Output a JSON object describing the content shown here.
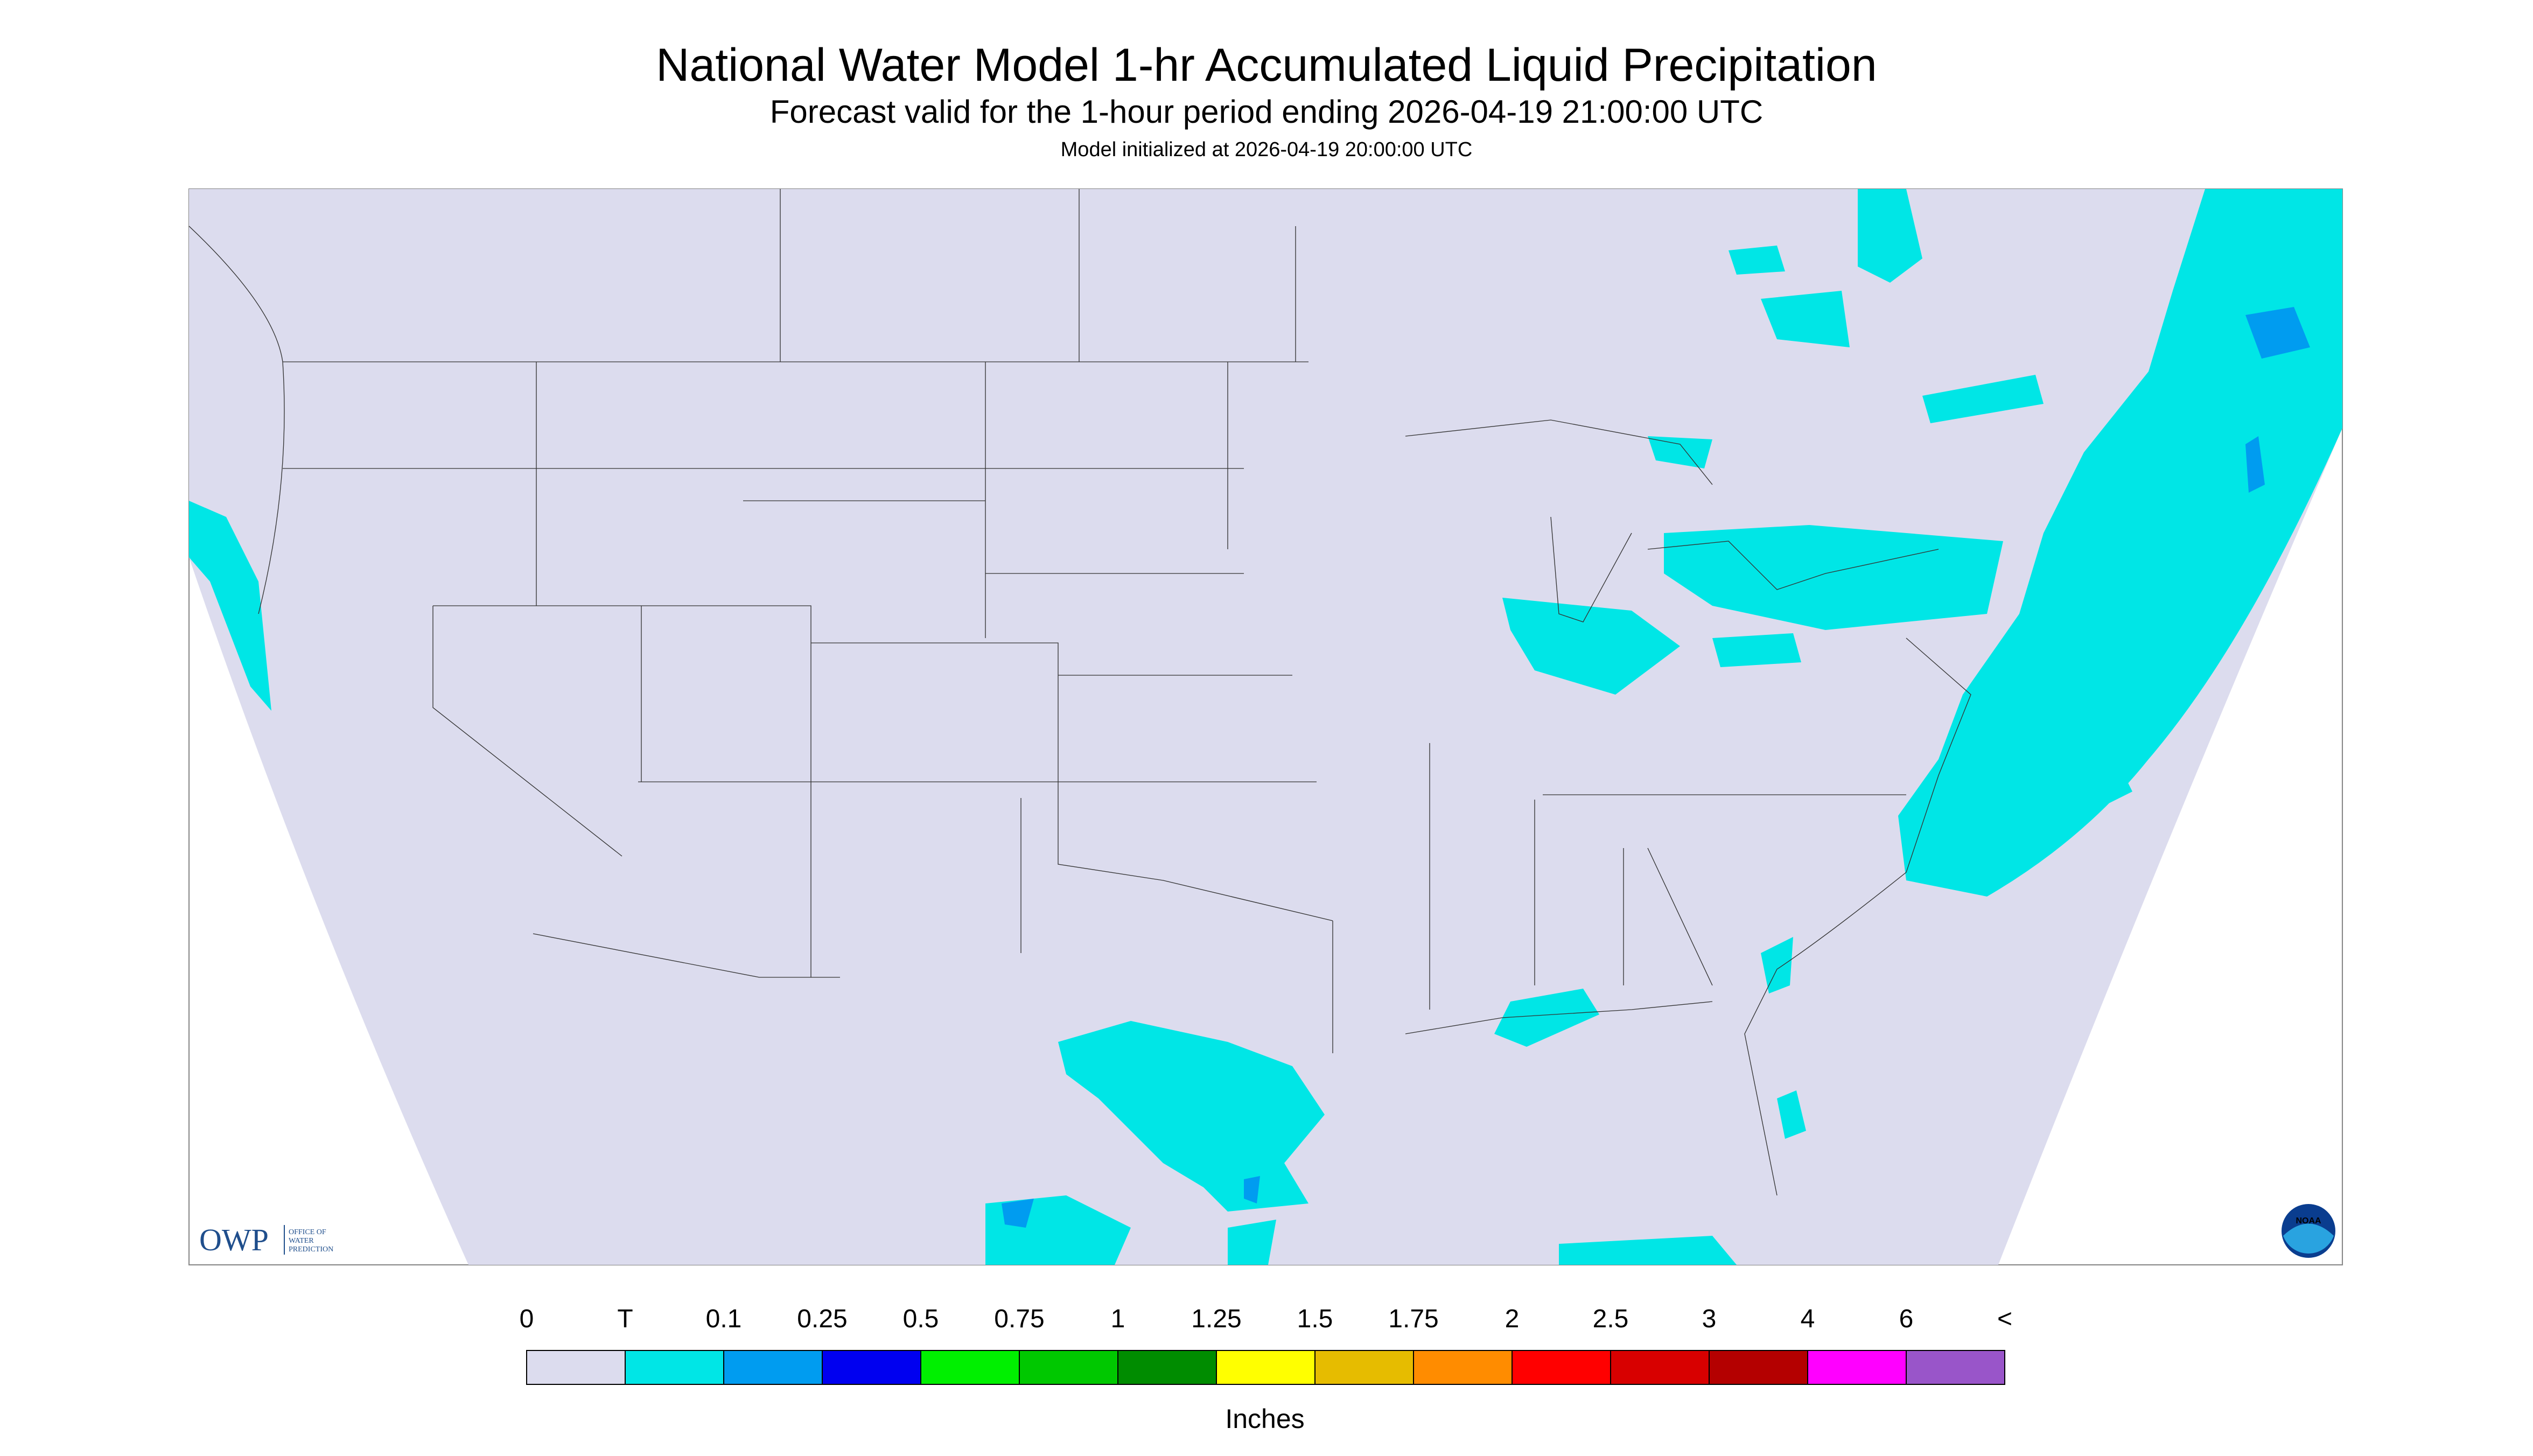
{
  "header": {
    "title": "National Water Model 1-hr Accumulated Liquid Precipitation",
    "subtitle": "Forecast valid for the 1-hour period ending 2026-04-19 21:00:00 UTC",
    "note": "Model initialized at 2026-04-19 20:00:00 UTC"
  },
  "logos": {
    "owp": "OWP",
    "owp_text": [
      "OFFICE OF",
      "WATER",
      "PREDICTION"
    ],
    "noaa": "NOAA"
  },
  "legend": {
    "labels": [
      "0",
      "T",
      "0.1",
      "0.25",
      "0.5",
      "0.75",
      "1",
      "1.25",
      "1.5",
      "1.75",
      "2",
      "2.5",
      "3",
      "4",
      "6",
      "<"
    ],
    "colors": [
      "#dcdcee",
      "#00e6e6",
      "#009cf0",
      "#0000f0",
      "#00f000",
      "#00c800",
      "#008c00",
      "#ffff00",
      "#e6bc00",
      "#ff8c00",
      "#ff0000",
      "#d80000",
      "#b40000",
      "#ff00ff",
      "#9955c9"
    ],
    "unit": "Inches"
  }
}
